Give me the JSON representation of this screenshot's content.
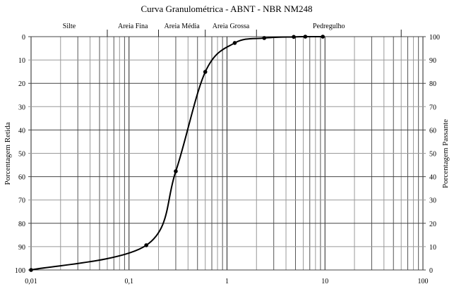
{
  "chart_data": {
    "type": "line",
    "title": "Curva Granulométrica - ABNT - NBR NM248",
    "xlabel": "",
    "ylabel": "Porcentagem Retida",
    "ylabel_right": "Porcentagem Passante",
    "xscale": "log",
    "xlim": [
      0.01,
      100
    ],
    "ylim": [
      0,
      100
    ],
    "y_inverted": true,
    "grid": true,
    "x_ticks": [
      "0,01",
      "0,1",
      "1",
      "10",
      "100"
    ],
    "y_ticks": [
      "0",
      "10",
      "20",
      "30",
      "40",
      "50",
      "60",
      "70",
      "80",
      "90",
      "100"
    ],
    "y_ticks_right": [
      "100",
      "90",
      "80",
      "70",
      "60",
      "50",
      "40",
      "30",
      "20",
      "10",
      "0"
    ],
    "zones": [
      {
        "label": "Silte",
        "from": 0.01,
        "to": 0.06
      },
      {
        "label": "Areia Fina",
        "from": 0.06,
        "to": 0.2
      },
      {
        "label": "Areia Média",
        "from": 0.2,
        "to": 0.6
      },
      {
        "label": "Areia Grossa",
        "from": 0.6,
        "to": 2
      },
      {
        "label": "Pedregulho",
        "from": 2,
        "to": 60
      }
    ],
    "series": [
      {
        "name": "Porcentagem Retida",
        "x": [
          0.01,
          0.15,
          0.3,
          0.6,
          1.2,
          2.4,
          4.8,
          6.3,
          9.5
        ],
        "y": [
          100,
          89.4,
          57.7,
          15.1,
          2.7,
          0.6,
          0.1,
          0,
          0
        ]
      }
    ]
  }
}
